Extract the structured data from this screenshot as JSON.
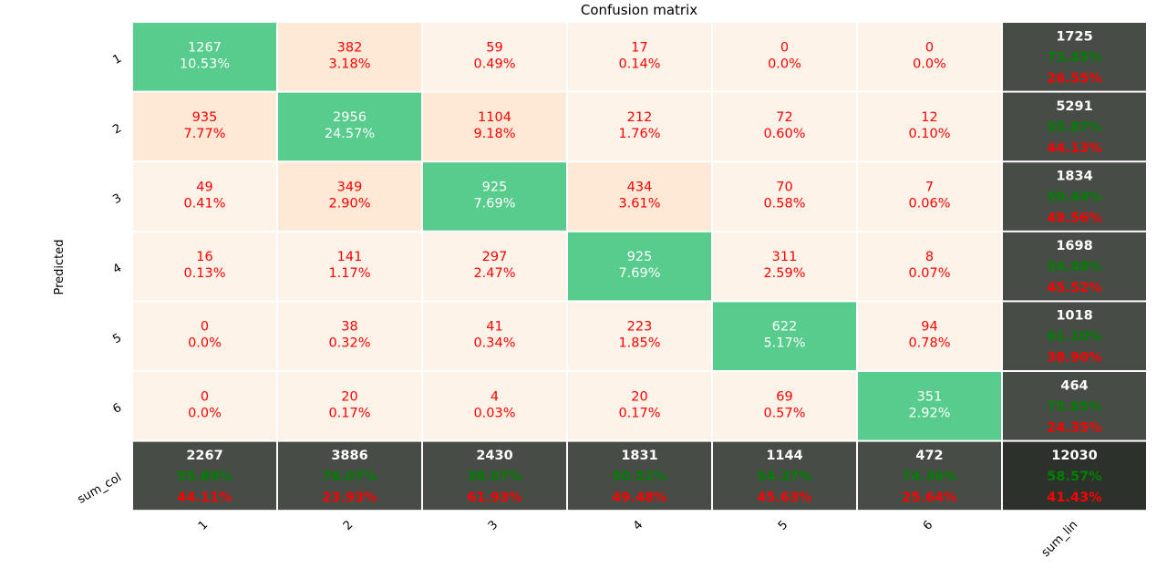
{
  "chart_data": {
    "type": "heatmap",
    "title": "Confusion matrix",
    "ylabel": "Predicted",
    "xlabel": "",
    "row_labels": [
      "1",
      "2",
      "3",
      "4",
      "5",
      "6",
      "sum_col"
    ],
    "col_labels": [
      "1",
      "2",
      "3",
      "4",
      "5",
      "6",
      "sum_lin"
    ],
    "matrix": [
      [
        1267,
        382,
        59,
        17,
        0,
        0
      ],
      [
        935,
        2956,
        1104,
        212,
        72,
        12
      ],
      [
        49,
        349,
        925,
        434,
        70,
        7
      ],
      [
        16,
        141,
        297,
        925,
        311,
        8
      ],
      [
        0,
        38,
        41,
        223,
        622,
        94
      ],
      [
        0,
        20,
        4,
        20,
        69,
        351
      ]
    ],
    "cell_pct": [
      [
        "10.53%",
        "3.18%",
        "0.49%",
        "0.14%",
        "0.0%",
        "0.0%"
      ],
      [
        "7.77%",
        "24.57%",
        "9.18%",
        "1.76%",
        "0.60%",
        "0.10%"
      ],
      [
        "0.41%",
        "2.90%",
        "7.69%",
        "3.61%",
        "0.58%",
        "0.06%"
      ],
      [
        "0.13%",
        "1.17%",
        "2.47%",
        "7.69%",
        "2.59%",
        "0.07%"
      ],
      [
        "0.0%",
        "0.32%",
        "0.34%",
        "1.85%",
        "5.17%",
        "0.78%"
      ],
      [
        "0.0%",
        "0.17%",
        "0.03%",
        "0.17%",
        "0.57%",
        "2.92%"
      ]
    ],
    "row_totals": [
      {
        "total": "1725",
        "correct": "73.45%",
        "error": "26.55%"
      },
      {
        "total": "5291",
        "correct": "55.87%",
        "error": "44.13%"
      },
      {
        "total": "1834",
        "correct": "50.44%",
        "error": "49.56%"
      },
      {
        "total": "1698",
        "correct": "54.48%",
        "error": "45.52%"
      },
      {
        "total": "1018",
        "correct": "61.10%",
        "error": "38.90%"
      },
      {
        "total": "464",
        "correct": "75.65%",
        "error": "24.35%"
      }
    ],
    "col_totals": [
      {
        "total": "2267",
        "correct": "55.89%",
        "error": "44.11%"
      },
      {
        "total": "3886",
        "correct": "76.07%",
        "error": "23.93%"
      },
      {
        "total": "2430",
        "correct": "38.07%",
        "error": "61.93%"
      },
      {
        "total": "1831",
        "correct": "50.52%",
        "error": "49.48%"
      },
      {
        "total": "1144",
        "correct": "54.37%",
        "error": "45.63%"
      },
      {
        "total": "472",
        "correct": "74.36%",
        "error": "25.64%"
      }
    ],
    "grand_total": {
      "total": "12030",
      "correct": "58.57%",
      "error": "41.43%"
    },
    "colors": {
      "diagonal": "#58cc8c",
      "off_diagonal_light": "#fef3e8",
      "off_diagonal_mid": "#fee8d6",
      "summary": "#474c46",
      "summary_corner": "#2d312b",
      "text_red": "#ff0000",
      "text_green": "#008000",
      "text_white": "#ffffff"
    }
  }
}
